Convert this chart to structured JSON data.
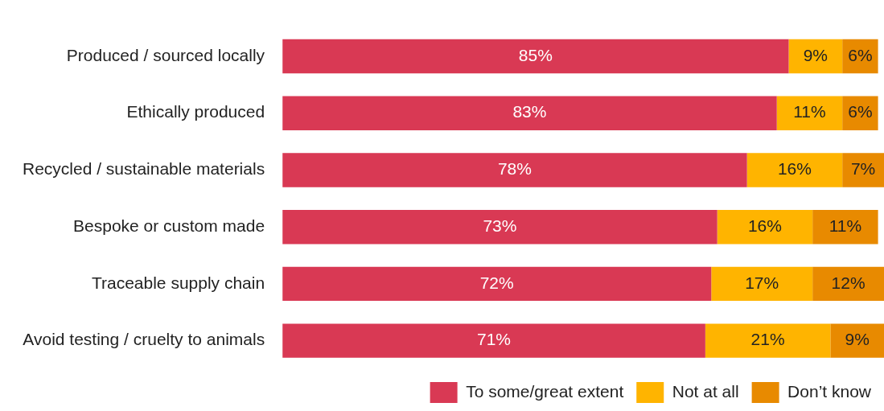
{
  "chart_data": {
    "type": "bar",
    "orientation": "horizontal",
    "stacked": true,
    "categories": [
      "Produced / sourced locally",
      "Ethically produced",
      "Recycled / sustainable materials",
      "Bespoke or custom made",
      "Traceable supply chain",
      "Avoid testing / cruelty to animals"
    ],
    "series": [
      {
        "name": "To some/great extent",
        "color": "#d93954",
        "values": [
          85,
          83,
          78,
          73,
          72,
          71
        ],
        "value_labels": [
          "85%",
          "83%",
          "78%",
          "73%",
          "72%",
          "71%"
        ]
      },
      {
        "name": "Not at all",
        "color": "#ffb400",
        "values": [
          9,
          11,
          16,
          16,
          17,
          21
        ],
        "value_labels": [
          "9%",
          "11%",
          "16%",
          "16%",
          "17%",
          "21%"
        ]
      },
      {
        "name": "Don’t know",
        "color": "#e88a00",
        "values": [
          6,
          6,
          7,
          11,
          12,
          9
        ],
        "value_labels": [
          "6%",
          "6%",
          "7%",
          "11%",
          "12%",
          "9%"
        ]
      }
    ],
    "xlim": [
      0,
      101
    ],
    "grid": false,
    "legend": "bottom right",
    "tick_labels": "y"
  }
}
